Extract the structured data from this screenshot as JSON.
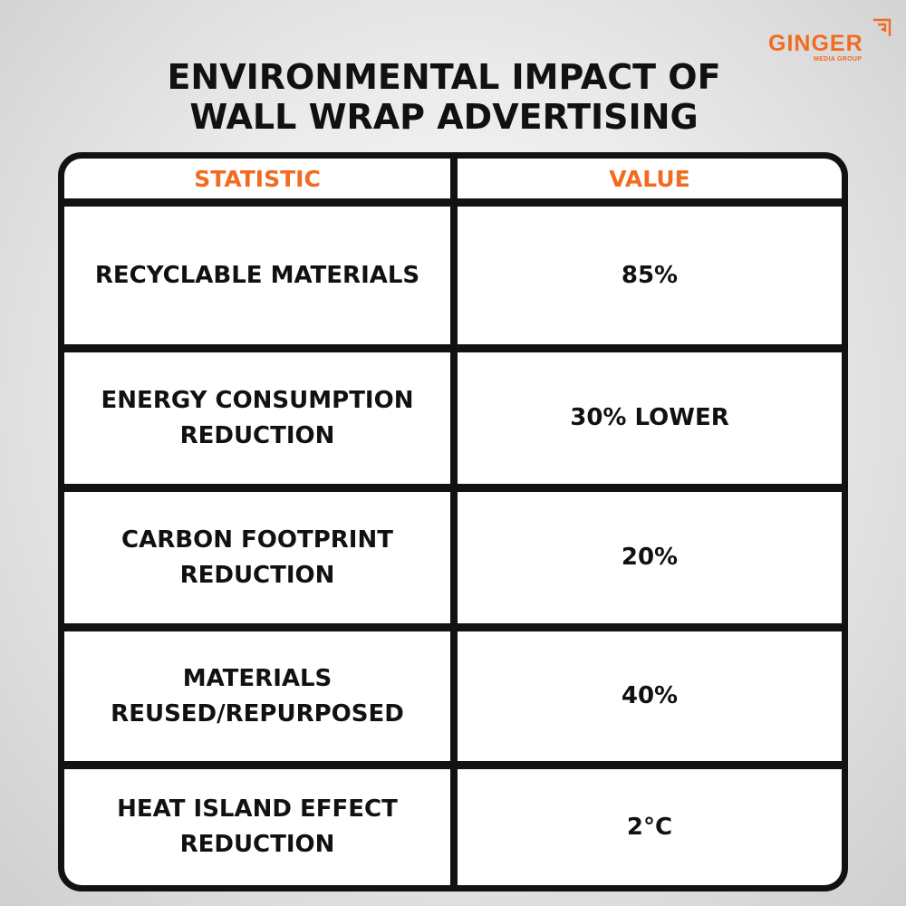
{
  "title": {
    "line1": "ENVIRONMENTAL IMPACT OF",
    "line2": "WALL WRAP ADVERTISING"
  },
  "brand": {
    "name": "GINGER",
    "subtitle": "MEDIA GROUP",
    "color": "#f26b21"
  },
  "table": {
    "headers": {
      "statistic": "STATISTIC",
      "value": "VALUE"
    },
    "rows": [
      {
        "statistic": "RECYCLABLE MATERIALS",
        "value": "85%"
      },
      {
        "statistic": "ENERGY CONSUMPTION REDUCTION",
        "value": "30% LOWER"
      },
      {
        "statistic": "CARBON FOOTPRINT REDUCTION",
        "value": "20%"
      },
      {
        "statistic": "MATERIALS REUSED/REPURPOSED",
        "value": "40%"
      },
      {
        "statistic": "HEAT ISLAND EFFECT REDUCTION",
        "value": "2°C"
      }
    ]
  },
  "colors": {
    "accent": "#f26b21",
    "text": "#111111",
    "border": "#121212",
    "cell_background": "#ffffff"
  }
}
